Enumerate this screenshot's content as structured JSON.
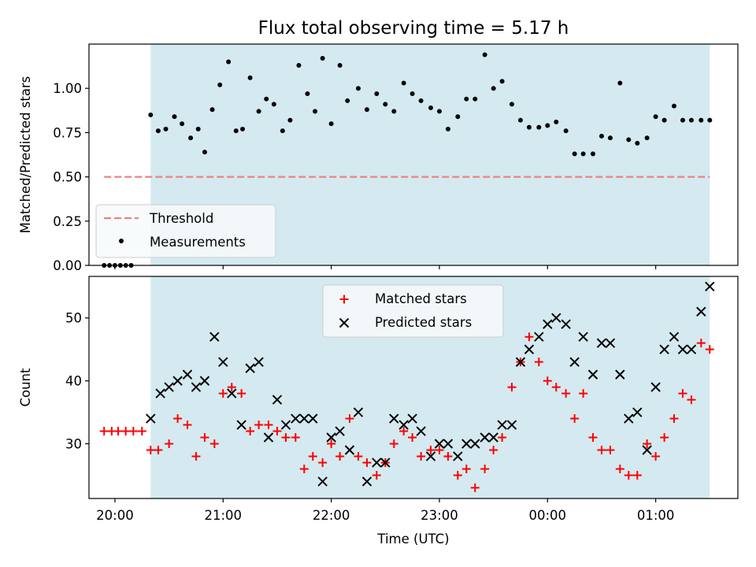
{
  "title": "Flux total observing time = 5.17 h",
  "chart_data": [
    {
      "type": "scatter",
      "panel": "top",
      "ylabel": "Matched/Predicted stars",
      "ylim": [
        0.0,
        1.25
      ],
      "yticks": [
        0.0,
        0.25,
        0.5,
        0.75,
        1.0
      ],
      "ytick_labels": [
        "0.00",
        "0.25",
        "0.50",
        "0.75",
        "1.00"
      ],
      "xlim": [
        19.76,
        25.76
      ],
      "legend_position": "lower-left",
      "observing_window": [
        20.33,
        25.5
      ],
      "observing_window_color": "#d4eaf0",
      "threshold": {
        "name": "Threshold",
        "value": 0.5,
        "x": [
          19.9,
          25.5
        ],
        "color": "#f08080",
        "style": "dashed"
      },
      "series": [
        {
          "name": "Measurements",
          "marker": "dot",
          "color": "#000000",
          "x": [
            19.9,
            19.95,
            20.0,
            20.05,
            20.1,
            20.15,
            20.33,
            20.4,
            20.47,
            20.55,
            20.62,
            20.7,
            20.77,
            20.83,
            20.9,
            20.97,
            21.05,
            21.12,
            21.18,
            21.25,
            21.33,
            21.4,
            21.47,
            21.55,
            21.62,
            21.7,
            21.78,
            21.85,
            21.92,
            22.0,
            22.08,
            22.15,
            22.25,
            22.33,
            22.42,
            22.5,
            22.58,
            22.67,
            22.75,
            22.83,
            22.92,
            23.0,
            23.08,
            23.17,
            23.25,
            23.33,
            23.42,
            23.5,
            23.58,
            23.67,
            23.75,
            23.83,
            23.92,
            24.0,
            24.08,
            24.17,
            24.25,
            24.33,
            24.42,
            24.5,
            24.58,
            24.67,
            24.75,
            24.83,
            24.92,
            25.0,
            25.08,
            25.17,
            25.25,
            25.33,
            25.42,
            25.5
          ],
          "y": [
            0.0,
            0.0,
            0.0,
            0.0,
            0.0,
            0.0,
            0.85,
            0.76,
            0.77,
            0.84,
            0.8,
            0.72,
            0.77,
            0.64,
            0.88,
            1.02,
            1.15,
            0.76,
            0.77,
            1.06,
            0.87,
            0.94,
            0.91,
            0.76,
            0.82,
            1.13,
            0.97,
            0.87,
            1.17,
            0.8,
            1.13,
            0.93,
            1.0,
            0.88,
            0.97,
            0.91,
            0.87,
            1.03,
            0.97,
            0.93,
            0.89,
            0.87,
            0.77,
            0.84,
            0.94,
            0.94,
            1.19,
            1.0,
            1.04,
            0.91,
            0.82,
            0.78,
            0.78,
            0.79,
            0.81,
            0.76,
            0.63,
            0.63,
            0.63,
            0.73,
            0.72,
            1.03,
            0.71,
            0.69,
            0.72,
            0.84,
            0.82,
            0.9,
            0.82,
            0.82,
            0.82,
            0.82
          ]
        }
      ]
    },
    {
      "type": "scatter",
      "panel": "bottom",
      "xlabel": "Time (UTC)",
      "ylabel": "Count",
      "ylim": [
        21.3,
        56.6
      ],
      "yticks": [
        30,
        40,
        50
      ],
      "xlim": [
        19.76,
        25.76
      ],
      "xticks": [
        20,
        21,
        22,
        23,
        24,
        25
      ],
      "xtick_labels": [
        "20:00",
        "21:00",
        "22:00",
        "23:00",
        "00:00",
        "01:00"
      ],
      "legend_position": "upper-center",
      "observing_window": [
        20.33,
        25.5
      ],
      "observing_window_color": "#d4eaf0",
      "series": [
        {
          "name": "Matched stars",
          "marker": "plus",
          "color": "#ff0000",
          "x": [
            19.9,
            19.97,
            20.03,
            20.1,
            20.17,
            20.25,
            20.33,
            20.4,
            20.5,
            20.58,
            20.67,
            20.75,
            20.83,
            20.92,
            21.0,
            21.08,
            21.17,
            21.25,
            21.33,
            21.42,
            21.5,
            21.58,
            21.67,
            21.75,
            21.83,
            21.92,
            22.0,
            22.08,
            22.17,
            22.25,
            22.33,
            22.42,
            22.5,
            22.58,
            22.67,
            22.75,
            22.83,
            22.92,
            23.0,
            23.08,
            23.17,
            23.25,
            23.33,
            23.42,
            23.5,
            23.58,
            23.67,
            23.75,
            23.83,
            23.92,
            24.0,
            24.08,
            24.17,
            24.25,
            24.33,
            24.42,
            24.5,
            24.58,
            24.67,
            24.75,
            24.83,
            24.92,
            25.0,
            25.08,
            25.17,
            25.25,
            25.33,
            25.42,
            25.5
          ],
          "y": [
            32,
            32,
            32,
            32,
            32,
            32,
            29,
            29,
            30,
            34,
            33,
            28,
            31,
            30,
            38,
            39,
            38,
            32,
            33,
            33,
            32,
            31,
            31,
            26,
            28,
            27,
            30,
            28,
            34,
            28,
            27,
            25,
            27,
            30,
            32,
            31,
            28,
            29,
            29,
            28,
            25,
            26,
            23,
            26,
            29,
            31,
            39,
            43,
            47,
            43,
            40,
            39,
            38,
            34,
            38,
            31,
            29,
            29,
            26,
            25,
            25,
            30,
            28,
            31,
            34,
            38,
            37,
            46,
            45
          ]
        },
        {
          "name": "Predicted stars",
          "marker": "x",
          "color": "#000000",
          "x": [
            20.33,
            20.42,
            20.5,
            20.58,
            20.67,
            20.75,
            20.83,
            20.92,
            21.0,
            21.08,
            21.17,
            21.25,
            21.33,
            21.42,
            21.5,
            21.58,
            21.67,
            21.75,
            21.83,
            21.92,
            22.0,
            22.08,
            22.17,
            22.25,
            22.33,
            22.42,
            22.5,
            22.58,
            22.67,
            22.75,
            22.83,
            22.92,
            23.0,
            23.08,
            23.17,
            23.25,
            23.33,
            23.42,
            23.5,
            23.58,
            23.67,
            23.75,
            23.83,
            23.92,
            24.0,
            24.08,
            24.17,
            24.25,
            24.33,
            24.42,
            24.5,
            24.58,
            24.67,
            24.75,
            24.83,
            24.92,
            25.0,
            25.08,
            25.17,
            25.25,
            25.33,
            25.42,
            25.5
          ],
          "y": [
            34,
            38,
            39,
            40,
            41,
            39,
            40,
            47,
            43,
            38,
            33,
            42,
            43,
            31,
            37,
            33,
            34,
            34,
            34,
            24,
            31,
            32,
            29,
            35,
            24,
            27,
            27,
            34,
            33,
            34,
            32,
            28,
            30,
            30,
            28,
            30,
            30,
            31,
            31,
            33,
            33,
            43,
            45,
            47,
            49,
            50,
            49,
            43,
            47,
            41,
            46,
            46,
            41,
            34,
            35,
            29,
            39,
            45,
            47,
            45,
            45,
            51,
            55
          ]
        }
      ]
    }
  ]
}
